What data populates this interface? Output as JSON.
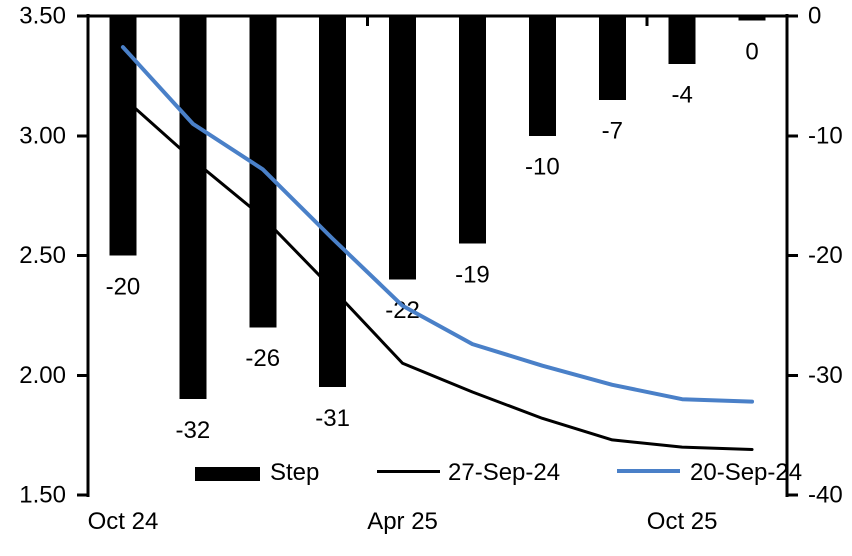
{
  "chart_data": {
    "type": "combo_bar_line",
    "title": "",
    "grid": false,
    "legend_position": "bottom",
    "bar_series": {
      "name": "Step",
      "axis": "right",
      "color": "#000000",
      "values": [
        -20,
        -32,
        -26,
        -31,
        -22,
        -19,
        -10,
        -7,
        -4,
        0
      ],
      "data_labels": [
        "-20",
        "-32",
        "-26",
        "-31",
        "-22",
        "-19",
        "-10",
        "-7",
        "-4",
        "0"
      ]
    },
    "line_series": [
      {
        "name": "27-Sep-24",
        "axis": "left",
        "color": "#000000",
        "stroke_width": 3,
        "values": [
          3.16,
          2.9,
          2.66,
          2.36,
          2.05,
          1.93,
          1.82,
          1.73,
          1.7,
          1.69
        ]
      },
      {
        "name": "20-Sep-24",
        "axis": "left",
        "color": "#4a80c8",
        "stroke_width": 4,
        "values": [
          3.37,
          3.05,
          2.86,
          2.57,
          2.29,
          2.13,
          2.04,
          1.96,
          1.9,
          1.89
        ]
      }
    ],
    "left_axis": {
      "min": 1.5,
      "max": 3.5,
      "tick_values": [
        3.5,
        3.0,
        2.5,
        2.0,
        1.5
      ],
      "tick_labels": [
        "3.50",
        "3.00",
        "2.50",
        "2.00",
        "1.50"
      ]
    },
    "right_axis": {
      "min": -40,
      "max": 0,
      "tick_values": [
        0,
        -10,
        -20,
        -30,
        -40
      ],
      "tick_labels": [
        "0",
        "-10",
        "-20",
        "-30",
        "-40"
      ]
    },
    "x_axis": {
      "labels": [
        {
          "text": "Oct 24",
          "category_index": 0
        },
        {
          "text": "Apr 25",
          "category_index": 4
        },
        {
          "text": "Oct 25",
          "category_index": 8
        }
      ],
      "boundary_tick_indices": [
        0,
        4,
        8
      ]
    },
    "legend": [
      {
        "label": "Step",
        "swatch": "bar",
        "color": "#000000"
      },
      {
        "label": "27-Sep-24",
        "swatch": "line",
        "color": "#000000"
      },
      {
        "label": "20-Sep-24",
        "swatch": "line",
        "color": "#4a80c8"
      }
    ]
  }
}
